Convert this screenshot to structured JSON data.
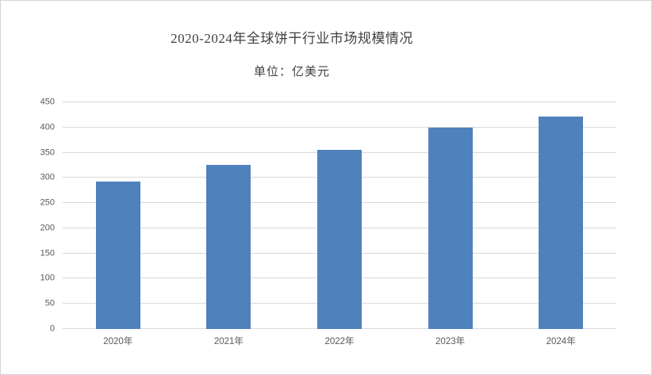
{
  "window": {
    "background": "#ffffff",
    "border_color": "#d4d4d4"
  },
  "chart_data": {
    "type": "bar",
    "title": "2020-2024年全球饼干行业市场规模情况",
    "unit_label": "单位：亿美元",
    "categories": [
      "2020年",
      "2021年",
      "2022年",
      "2023年",
      "2024年"
    ],
    "values": [
      293,
      325,
      355,
      400,
      422
    ],
    "xlabel": "",
    "ylabel": "",
    "ylim": [
      0,
      450
    ],
    "ytick_step": 50,
    "grid": "on",
    "legend": "none",
    "bar_color": "#4f81bd",
    "gridline_color": "#d9d9d9",
    "axis_line_color": "#d9d9d9",
    "tick_label_color": "#595959",
    "title_color": "#404040"
  }
}
